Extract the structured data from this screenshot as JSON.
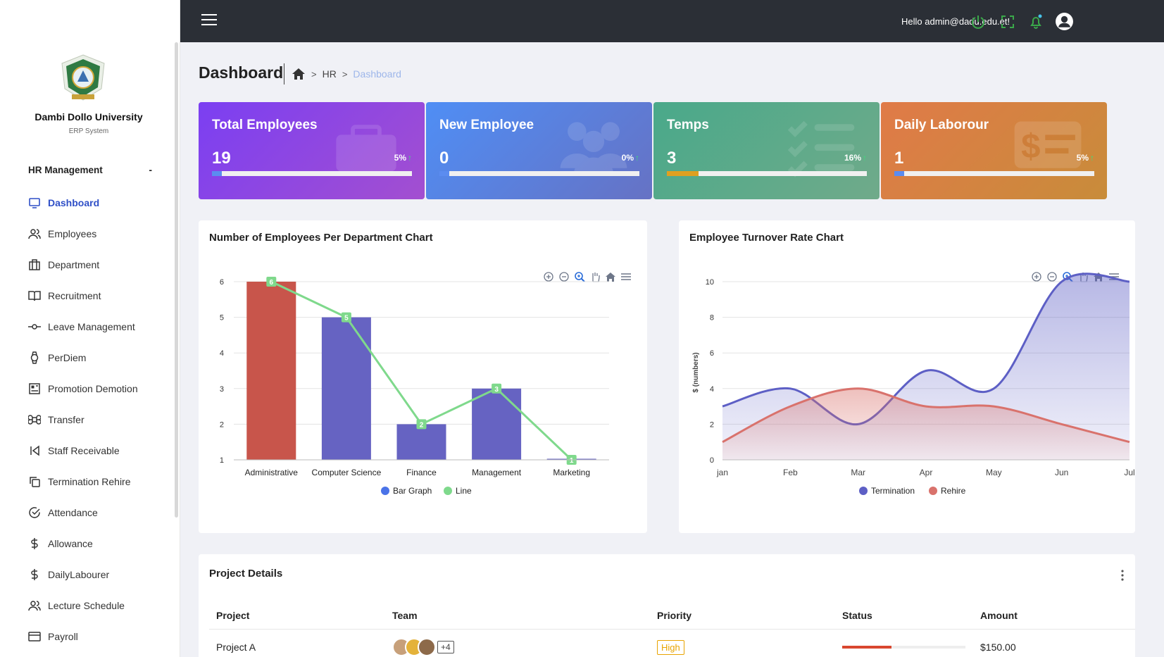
{
  "sidebar": {
    "university_name": "Dambi Dollo University",
    "university_sub": "ERP System",
    "section_title": "HR Management",
    "section_toggle": "-",
    "items": [
      {
        "label": "Dashboard",
        "icon": "monitor-icon",
        "active": true
      },
      {
        "label": "Employees",
        "icon": "users-icon"
      },
      {
        "label": "Department",
        "icon": "building-icon"
      },
      {
        "label": "Recruitment",
        "icon": "book-icon"
      },
      {
        "label": "Leave Management",
        "icon": "commit-icon"
      },
      {
        "label": "PerDiem",
        "icon": "watch-icon"
      },
      {
        "label": "Promotion Demotion",
        "icon": "layout-icon"
      },
      {
        "label": "Transfer",
        "icon": "command-icon"
      },
      {
        "label": "Staff Receivable",
        "icon": "skip-back-icon"
      },
      {
        "label": "Termination Rehire",
        "icon": "copy-icon"
      },
      {
        "label": "Attendance",
        "icon": "check-circle-icon"
      },
      {
        "label": "Allowance",
        "icon": "dollar-icon"
      },
      {
        "label": "DailyLabourer",
        "icon": "dollar-icon"
      },
      {
        "label": "Lecture Schedule",
        "icon": "users-icon"
      },
      {
        "label": "Payroll",
        "icon": "credit-card-icon"
      }
    ]
  },
  "topbar": {
    "greeting": "Hello admin@dadu.edu.et!"
  },
  "page": {
    "title": "Dashboard",
    "breadcrumb": [
      "HR",
      "Dashboard"
    ]
  },
  "cards": [
    {
      "title": "Total Employees",
      "value": "19",
      "percent": "5%",
      "fill": 0.05,
      "colors": [
        "#7b3ff2",
        "#a34fd0"
      ],
      "fill_color": "#5b8cf0"
    },
    {
      "title": "New Employee",
      "value": "0",
      "percent": "0%",
      "fill": 0.0,
      "colors": [
        "#4f8ef5",
        "#6672c4"
      ],
      "fill_color": "#5b8cf0"
    },
    {
      "title": "Temps",
      "value": "3",
      "percent": "16%",
      "fill": 0.16,
      "colors": [
        "#49a98a",
        "#70aa8a"
      ],
      "fill_color": "#e0a020"
    },
    {
      "title": "Daily Laborour",
      "value": "1",
      "percent": "5%",
      "fill": 0.05,
      "colors": [
        "#e07a48",
        "#c88c3a"
      ],
      "fill_color": "#5b8cf0"
    }
  ],
  "chart_data": [
    {
      "type": "bar",
      "title": "Number of Employees Per Department Chart",
      "categories": [
        "Administrative",
        "Computer Science",
        "Finance",
        "Management",
        "Marketing"
      ],
      "series": [
        {
          "name": "Bar Graph",
          "type": "bar",
          "values": [
            6,
            5,
            2,
            3,
            1
          ],
          "color": "#6663c2",
          "highlight_color": "#c8554b"
        },
        {
          "name": "Line",
          "type": "line",
          "values": [
            6,
            5,
            2,
            3,
            1
          ],
          "color": "#7fd98c"
        }
      ],
      "ylim": [
        1,
        6
      ],
      "yticks": [
        1,
        2,
        3,
        4,
        5,
        6
      ],
      "legend": "bottom",
      "grid": true
    },
    {
      "type": "area",
      "title": "Employee Turnover Rate Chart",
      "ylabel": "$ (numbers)",
      "x": [
        "jan",
        "Feb",
        "Mar",
        "Apr",
        "May",
        "Jun",
        "Jul"
      ],
      "series": [
        {
          "name": "Termination",
          "values": [
            3,
            4,
            2,
            5,
            4,
            10,
            10
          ],
          "color": "#5d5fc5"
        },
        {
          "name": "Rehire",
          "values": [
            1,
            3,
            4,
            3,
            3,
            2,
            1
          ],
          "color": "#d9726c"
        }
      ],
      "ylim": [
        0,
        10
      ],
      "yticks": [
        0,
        2,
        4,
        6,
        8,
        10
      ],
      "legend": "bottom",
      "grid": true
    }
  ],
  "projects": {
    "title": "Project Details",
    "columns": [
      "Project",
      "Team",
      "Priority",
      "Status",
      "Amount"
    ],
    "rows": [
      {
        "project": "Project A",
        "team_more": "+4",
        "priority": "High",
        "status": 0.4,
        "amount": "$150.00"
      }
    ]
  }
}
